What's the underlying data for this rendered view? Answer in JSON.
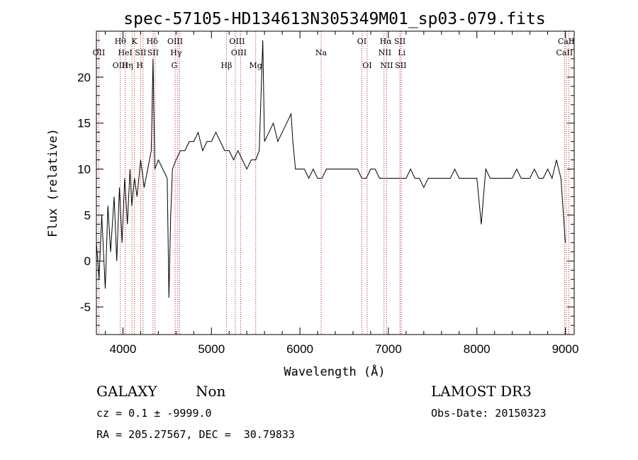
{
  "chart_data": {
    "type": "line",
    "title": "spec-57105-HD134613N305349M01_sp03-079.fits",
    "xlabel": "Wavelength (Å)",
    "ylabel": "Flux (relative)",
    "xlim": [
      3700,
      9100
    ],
    "ylim": [
      -8,
      25
    ],
    "xticks": [
      4000,
      5000,
      6000,
      7000,
      8000,
      9000
    ],
    "yticks": [
      -5,
      0,
      5,
      10,
      15,
      20
    ],
    "grid": false,
    "series": [
      {
        "x": [
          3700,
          3730,
          3760,
          3800,
          3830,
          3860,
          3900,
          3930,
          3960,
          3990,
          4020,
          4050,
          4080,
          4100,
          4130,
          4160,
          4200,
          4240,
          4280,
          4320,
          4340,
          4360,
          4400,
          4450,
          4500,
          4520,
          4540,
          4560,
          4600,
          4650,
          4700,
          4750,
          4800,
          4850,
          4900,
          4950,
          5000,
          5050,
          5100,
          5150,
          5200,
          5250,
          5300,
          5350,
          5400,
          5450,
          5500,
          5540,
          5580,
          5600,
          5650,
          5700,
          5750,
          5800,
          5850,
          5900,
          5920,
          5950,
          6000,
          6050,
          6100,
          6150,
          6200,
          6250,
          6300,
          6350,
          6400,
          6450,
          6500,
          6550,
          6600,
          6650,
          6700,
          6750,
          6800,
          6850,
          6900,
          6950,
          7000,
          7050,
          7100,
          7150,
          7200,
          7250,
          7300,
          7350,
          7400,
          7450,
          7500,
          7550,
          7600,
          7650,
          7700,
          7750,
          7800,
          7850,
          7900,
          7950,
          8000,
          8050,
          8100,
          8150,
          8200,
          8250,
          8300,
          8350,
          8400,
          8450,
          8500,
          8550,
          8600,
          8650,
          8700,
          8750,
          8800,
          8850,
          8900,
          8950,
          9000
        ],
        "values": [
          2,
          -2,
          5,
          -3,
          6,
          1,
          7,
          0,
          8,
          2,
          9,
          4,
          10,
          6,
          9,
          7,
          11,
          8,
          10,
          12,
          22,
          10,
          11,
          10,
          9,
          -4,
          5,
          10,
          11,
          12,
          12,
          13,
          13,
          14,
          12,
          13,
          13,
          14,
          13,
          12,
          12,
          11,
          12,
          11,
          10,
          11,
          11,
          12,
          24,
          13,
          14,
          15,
          13,
          14,
          15,
          16,
          13,
          10,
          10,
          10,
          9,
          10,
          9,
          9,
          10,
          10,
          10,
          10,
          10,
          10,
          10,
          10,
          9,
          9,
          10,
          10,
          9,
          9,
          9,
          9,
          9,
          9,
          9,
          10,
          9,
          9,
          8,
          9,
          9,
          9,
          9,
          9,
          9,
          10,
          9,
          9,
          9,
          9,
          9,
          4,
          10,
          9,
          9,
          9,
          9,
          9,
          9,
          10,
          9,
          9,
          9,
          10,
          9,
          9,
          10,
          9,
          11,
          9,
          2
        ]
      }
    ],
    "spectral_lines": [
      {
        "label": "OII",
        "x": 3727,
        "row": 1
      },
      {
        "label": "Hθ",
        "x": 3970,
        "row": 0
      },
      {
        "label": "OIII",
        "x": 3970,
        "row": 2
      },
      {
        "label": "HeI",
        "x": 4026,
        "row": 1
      },
      {
        "label": "Hη",
        "x": 4050,
        "row": 2
      },
      {
        "label": "K",
        "x": 4130,
        "row": 0
      },
      {
        "label": "H",
        "x": 4190,
        "row": 2
      },
      {
        "label": "SII",
        "x": 4200,
        "row": 1
      },
      {
        "label": "Hδ",
        "x": 4330,
        "row": 0
      },
      {
        "label": "SII",
        "x": 4340,
        "row": 1
      },
      {
        "label": "OIII",
        "x": 4590,
        "row": 0
      },
      {
        "label": "Hγ",
        "x": 4600,
        "row": 1
      },
      {
        "label": "G",
        "x": 4580,
        "row": 2
      },
      {
        "label": "Hβ",
        "x": 5170,
        "row": 2
      },
      {
        "label": "OIII",
        "x": 5290,
        "row": 0
      },
      {
        "label": "OIII",
        "x": 5310,
        "row": 1
      },
      {
        "label": "Mg",
        "x": 5500,
        "row": 2
      },
      {
        "label": "Na",
        "x": 6240,
        "row": 1
      },
      {
        "label": "OI",
        "x": 6700,
        "row": 0
      },
      {
        "label": "OI",
        "x": 6760,
        "row": 2
      },
      {
        "label": "Hα",
        "x": 6970,
        "row": 0
      },
      {
        "label": "NII",
        "x": 6960,
        "row": 1
      },
      {
        "label": "NII",
        "x": 6980,
        "row": 2
      },
      {
        "label": "SII",
        "x": 7130,
        "row": 0
      },
      {
        "label": "Li",
        "x": 7150,
        "row": 1
      },
      {
        "label": "SII",
        "x": 7140,
        "row": 2
      },
      {
        "label": "CaII",
        "x": 9010,
        "row": 0
      },
      {
        "label": "CaII",
        "x": 8990,
        "row": 1
      }
    ],
    "marker_lines_x": [
      3727,
      3970,
      4026,
      4102,
      4130,
      4200,
      4227,
      4340,
      4363,
      4590,
      4620,
      4640,
      5170,
      5270,
      5330,
      5500,
      6240,
      6700,
      6760,
      6950,
      6980,
      7130,
      7145,
      8990,
      9010,
      9040
    ]
  },
  "info": {
    "object_class": "GALAXY",
    "subclass": "Non",
    "survey": "LAMOST DR3",
    "redshift": "cz = 0.1 ± -9999.0",
    "obs_date": "Obs-Date: 20150323",
    "coords": "RA = 205.27567, DEC =  30.79833"
  },
  "colors": {
    "spectrum": "#000000",
    "markers": "#b22222"
  }
}
